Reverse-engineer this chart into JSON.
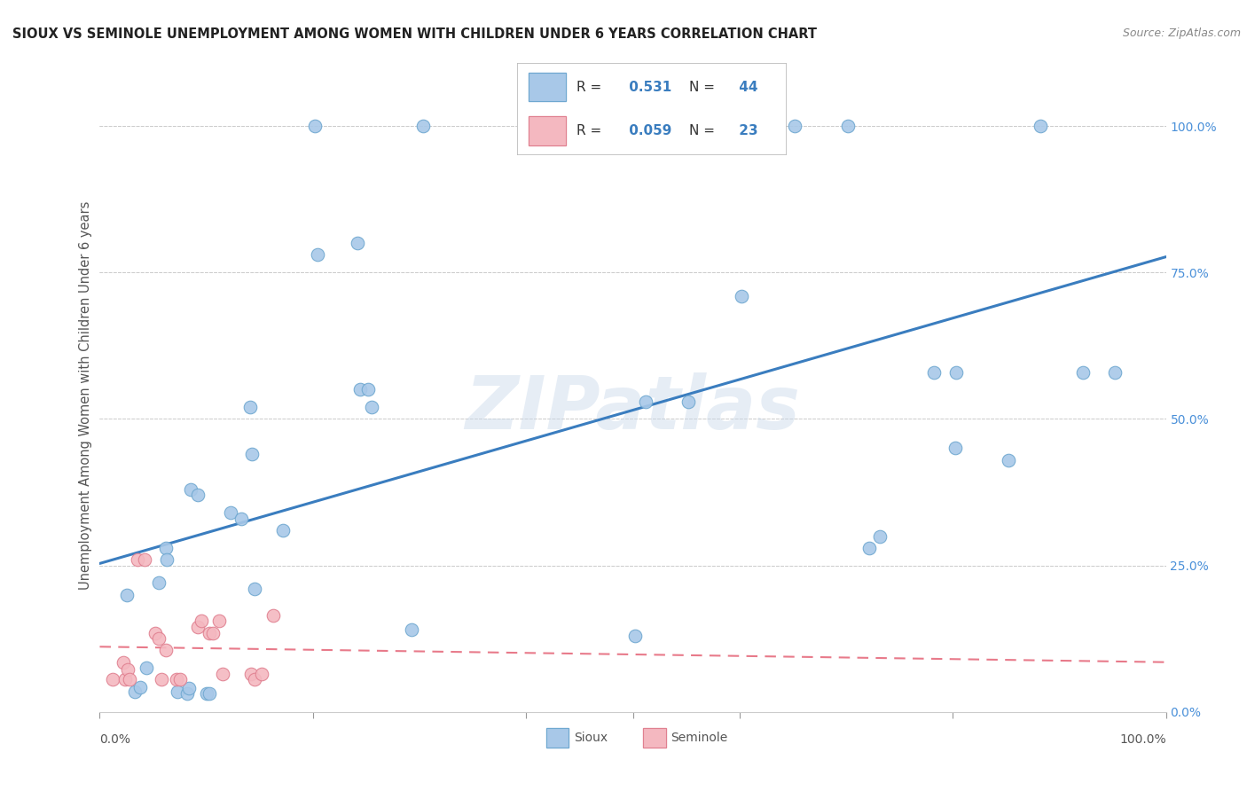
{
  "title": "SIOUX VS SEMINOLE UNEMPLOYMENT AMONG WOMEN WITH CHILDREN UNDER 6 YEARS CORRELATION CHART",
  "source": "Source: ZipAtlas.com",
  "ylabel": "Unemployment Among Women with Children Under 6 years",
  "sioux_R": 0.531,
  "sioux_N": 44,
  "seminole_R": 0.059,
  "seminole_N": 23,
  "sioux_color": "#a8c8e8",
  "seminole_color": "#f4b8c0",
  "sioux_line_color": "#3a7dbf",
  "seminole_line_color": "#e87a8a",
  "watermark": "ZIPatlas",
  "sioux_x": [
    0.025,
    0.055,
    0.033,
    0.038,
    0.044,
    0.062,
    0.063,
    0.073,
    0.082,
    0.084,
    0.085,
    0.092,
    0.1,
    0.103,
    0.123,
    0.133,
    0.141,
    0.143,
    0.145,
    0.172,
    0.202,
    0.204,
    0.242,
    0.244,
    0.252,
    0.255,
    0.292,
    0.303,
    0.502,
    0.512,
    0.552,
    0.602,
    0.632,
    0.652,
    0.702,
    0.722,
    0.732,
    0.782,
    0.802,
    0.803,
    0.852,
    0.882,
    0.922,
    0.952
  ],
  "sioux_y": [
    0.2,
    0.22,
    0.035,
    0.042,
    0.075,
    0.28,
    0.26,
    0.035,
    0.032,
    0.04,
    0.38,
    0.37,
    0.032,
    0.032,
    0.34,
    0.33,
    0.52,
    0.44,
    0.21,
    0.31,
    1.0,
    0.78,
    0.8,
    0.55,
    0.55,
    0.52,
    0.14,
    1.0,
    0.13,
    0.53,
    0.53,
    0.71,
    1.0,
    1.0,
    1.0,
    0.28,
    0.3,
    0.58,
    0.45,
    0.58,
    0.43,
    1.0,
    0.58,
    0.58
  ],
  "seminole_x": [
    0.012,
    0.022,
    0.024,
    0.026,
    0.028,
    0.035,
    0.042,
    0.052,
    0.055,
    0.058,
    0.062,
    0.072,
    0.075,
    0.092,
    0.095,
    0.103,
    0.106,
    0.112,
    0.115,
    0.142,
    0.145,
    0.152,
    0.163
  ],
  "seminole_y": [
    0.055,
    0.085,
    0.055,
    0.072,
    0.055,
    0.26,
    0.26,
    0.135,
    0.125,
    0.055,
    0.105,
    0.055,
    0.055,
    0.145,
    0.155,
    0.135,
    0.135,
    0.155,
    0.065,
    0.065,
    0.055,
    0.065,
    0.165
  ],
  "yticks": [
    0.0,
    0.25,
    0.5,
    0.75,
    1.0
  ],
  "ytick_labels": [
    "0.0%",
    "25.0%",
    "50.0%",
    "75.0%",
    "100.0%"
  ]
}
